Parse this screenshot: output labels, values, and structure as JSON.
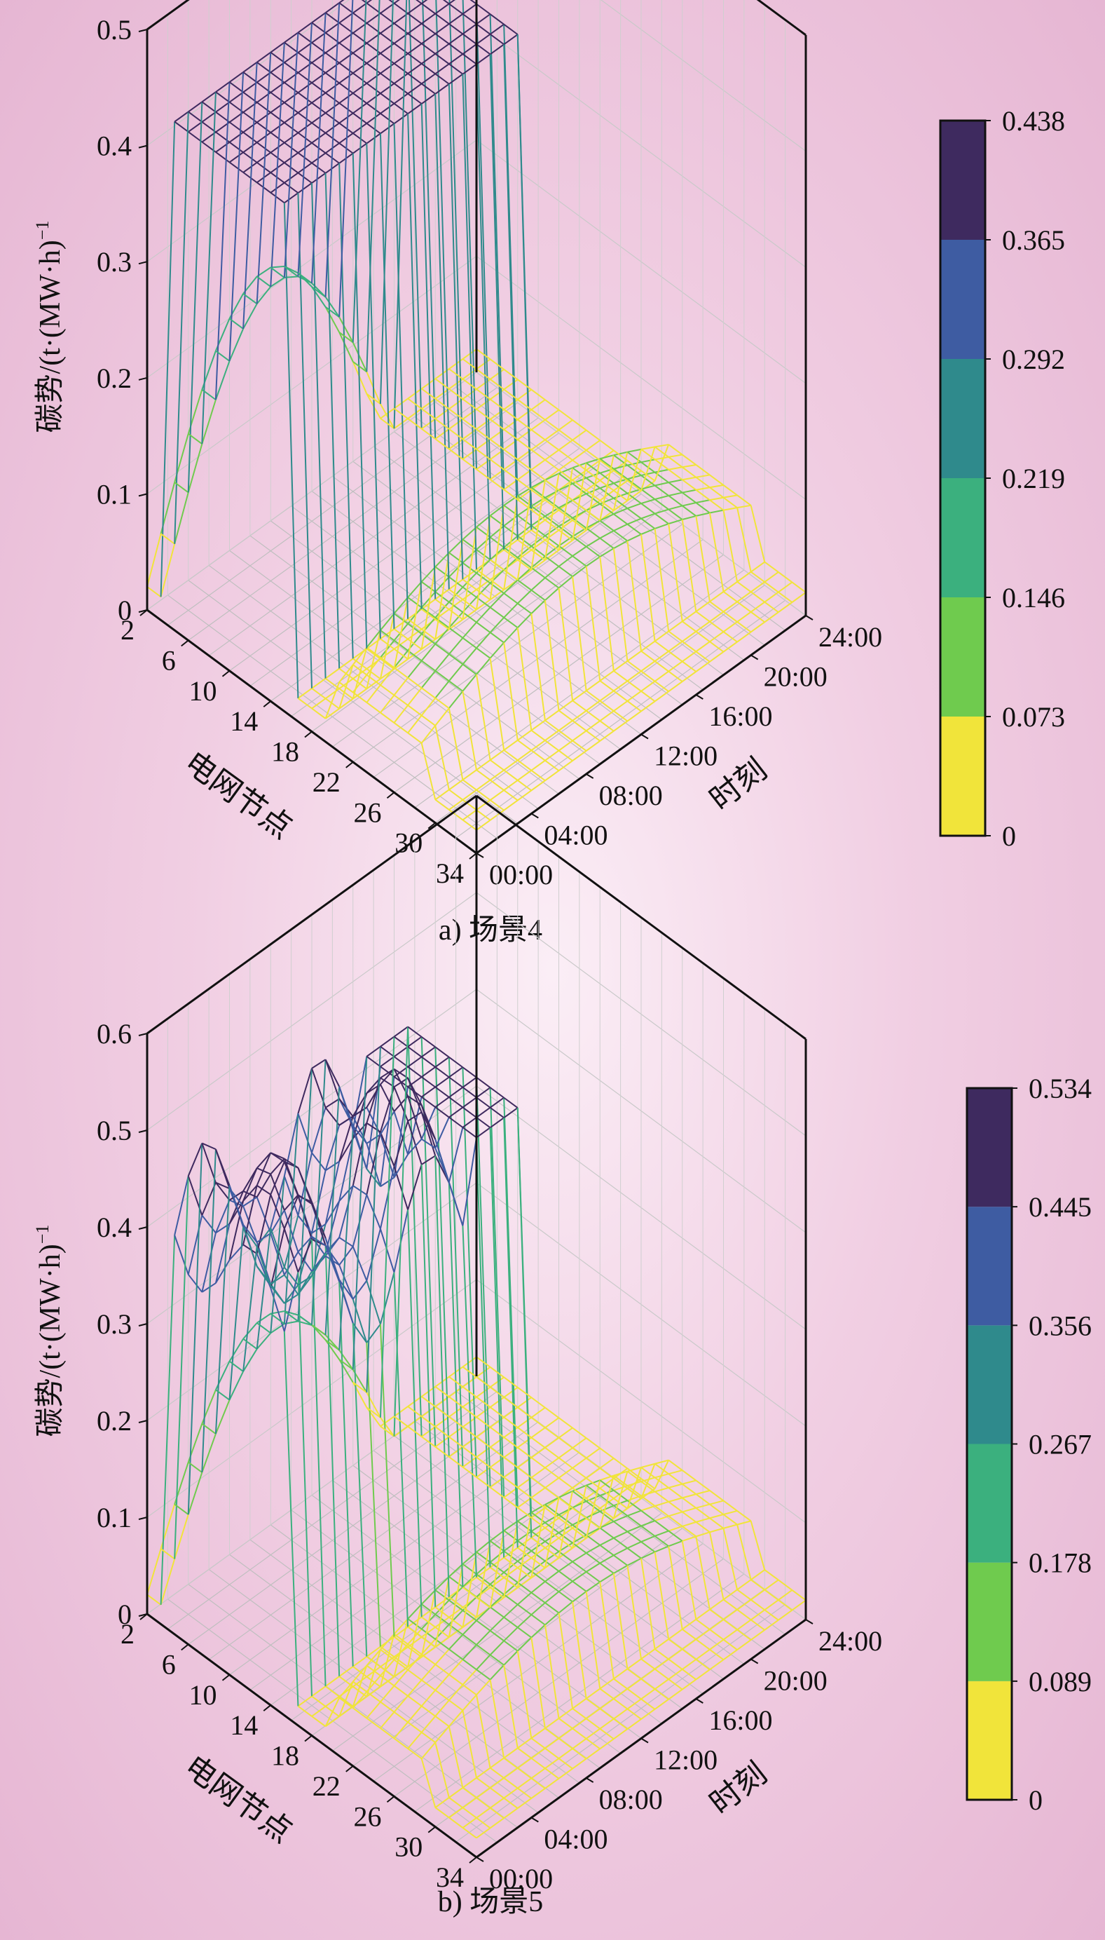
{
  "chart_data": [
    {
      "type": "surface3d",
      "caption": "a) 场景4",
      "zlabel": "碳势/(t·(MW·h)",
      "zlabel_sup": "−1",
      "xlabel": "电网节点",
      "ylabel": "时刻",
      "zlim": [
        0,
        0.5
      ],
      "z_ticks": [
        "0",
        "0.1",
        "0.2",
        "0.3",
        "0.4",
        "0.5"
      ],
      "node_ticks": [
        "2",
        "6",
        "10",
        "14",
        "18",
        "22",
        "26",
        "30",
        "34"
      ],
      "time_ticks": [
        "00:00",
        "04:00",
        "08:00",
        "12:00",
        "16:00",
        "20:00",
        "24:00"
      ],
      "colorbar_ticks": [
        "0",
        "0.073",
        "0.146",
        "0.219",
        "0.292",
        "0.365",
        "0.438"
      ],
      "colorbar_colors": [
        "#f1e43a",
        "#6fcb4e",
        "#3bb07e",
        "#2f8a8c",
        "#3e5ca2",
        "#3e2a5f"
      ],
      "grid": true,
      "nodes": [
        2,
        6,
        10,
        14,
        18,
        22,
        26,
        30,
        34
      ],
      "times": [
        "00:00",
        "04:00",
        "08:00",
        "12:00",
        "16:00",
        "20:00",
        "24:00"
      ],
      "surface_levels": {
        "upper_plateau": 0.438,
        "mid_ridge_peak": 0.23,
        "lower_trough": 0.02
      }
    },
    {
      "type": "surface3d",
      "caption": "b) 场景5",
      "zlabel": "碳势/(t·(MW·h)",
      "zlabel_sup": "−1",
      "xlabel": "电网节点",
      "ylabel": "时刻",
      "zlim": [
        0,
        0.6
      ],
      "z_ticks": [
        "0",
        "0.1",
        "0.2",
        "0.3",
        "0.4",
        "0.5",
        "0.6"
      ],
      "node_ticks": [
        "2",
        "6",
        "10",
        "14",
        "18",
        "22",
        "26",
        "30",
        "34"
      ],
      "time_ticks": [
        "00:00",
        "04:00",
        "08:00",
        "12:00",
        "16:00",
        "20:00",
        "24:00"
      ],
      "colorbar_ticks": [
        "0",
        "0.089",
        "0.178",
        "0.267",
        "0.356",
        "0.445",
        "0.534"
      ],
      "colorbar_colors": [
        "#f1e43a",
        "#6fcb4e",
        "#3bb07e",
        "#2f8a8c",
        "#3e5ca2",
        "#3e2a5f"
      ],
      "grid": true,
      "nodes": [
        2,
        6,
        10,
        14,
        18,
        22,
        26,
        30,
        34
      ],
      "times": [
        "00:00",
        "04:00",
        "08:00",
        "12:00",
        "16:00",
        "20:00",
        "24:00"
      ],
      "surface_levels": {
        "upper_plateau": 0.534,
        "mid_ridge_peak": 0.23,
        "lower_trough": 0.02
      }
    }
  ]
}
